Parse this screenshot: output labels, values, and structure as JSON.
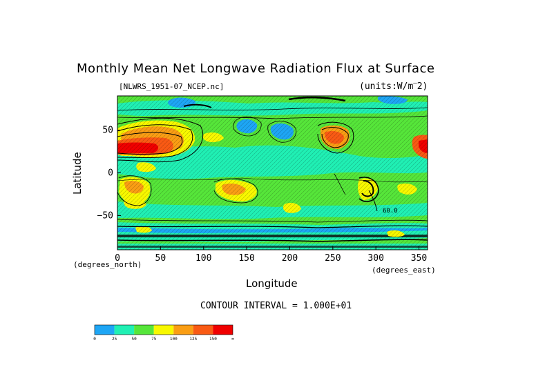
{
  "chart_data": {
    "type": "heatmap",
    "title": "Monthly Mean Net Longwave Radiation Flux at Surface",
    "dataset_label": "[NLWRS_1951-07_NCEP.nc]",
    "units_label": "(units:W/m^2)",
    "xlabel": "Longitude",
    "ylabel": "Latitude",
    "x_unit_label": "(degrees_east)",
    "y_unit_label": "(degrees_north)",
    "xlim": [
      0,
      360
    ],
    "ylim": [
      -90,
      90
    ],
    "x_ticks": [
      "0",
      "50",
      "100",
      "150",
      "200",
      "250",
      "300",
      "350"
    ],
    "y_ticks": [
      "50",
      "0",
      "−50"
    ],
    "contour_interval_label": "CONTOUR INTERVAL = 1.000E+01",
    "contour_label_sample": "60.0",
    "colorbar": {
      "tick_labels": [
        "0",
        "25",
        "50",
        "75",
        "100",
        "125",
        "150",
        "∞"
      ],
      "colors": [
        "#1ea6f5",
        "#20f0b4",
        "#56e63a",
        "#f8f800",
        "#fa9e14",
        "#f95a14",
        "#f00000"
      ]
    },
    "field_note": "Values mostly 25–75 W/m^2; high (100–150+) over Sahara/Arabia (~0–60E, 20–40N), Asia/NE Pacific (~235–255E, 40–55N); low (0–25) over Siberia (~140–200E, 55–65N) and Antarctic coast."
  }
}
